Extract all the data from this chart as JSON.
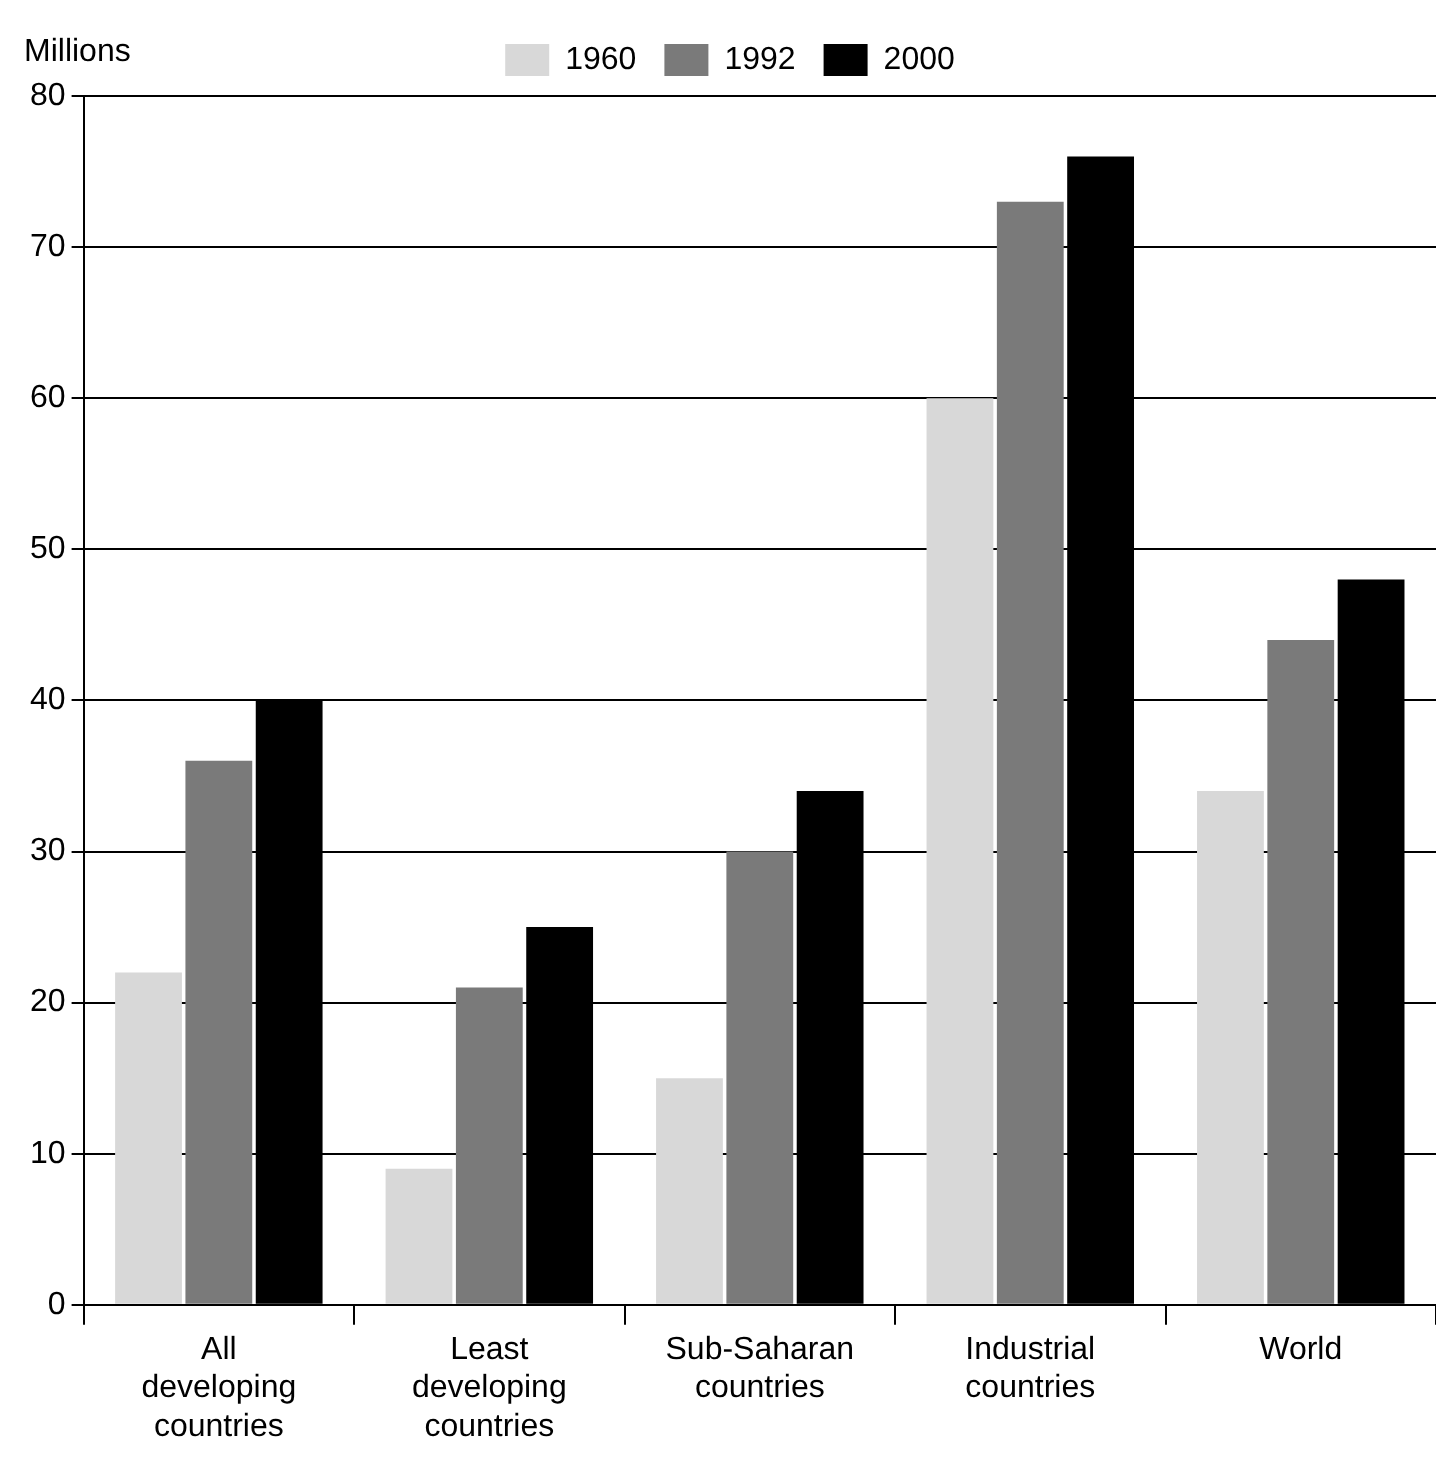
{
  "chart_data": {
    "type": "bar",
    "ylabel": "Millions",
    "categories": [
      "All developing countries",
      "Least developing countries",
      "Sub-Saharan countries",
      "Industrial countries",
      "World"
    ],
    "series": [
      {
        "name": "1960",
        "color": "#d8d8d8",
        "values": [
          22,
          9,
          15,
          60,
          34
        ]
      },
      {
        "name": "1992",
        "color": "#7a7a7a",
        "values": [
          36,
          21,
          30,
          73,
          44
        ]
      },
      {
        "name": "2000",
        "color": "#000000",
        "values": [
          40,
          25,
          34,
          76,
          48
        ]
      }
    ],
    "ylim": [
      0,
      80
    ],
    "yticks": [
      0,
      10,
      20,
      30,
      40,
      50,
      60,
      70,
      80
    ],
    "grid": "y",
    "legend": "top"
  }
}
